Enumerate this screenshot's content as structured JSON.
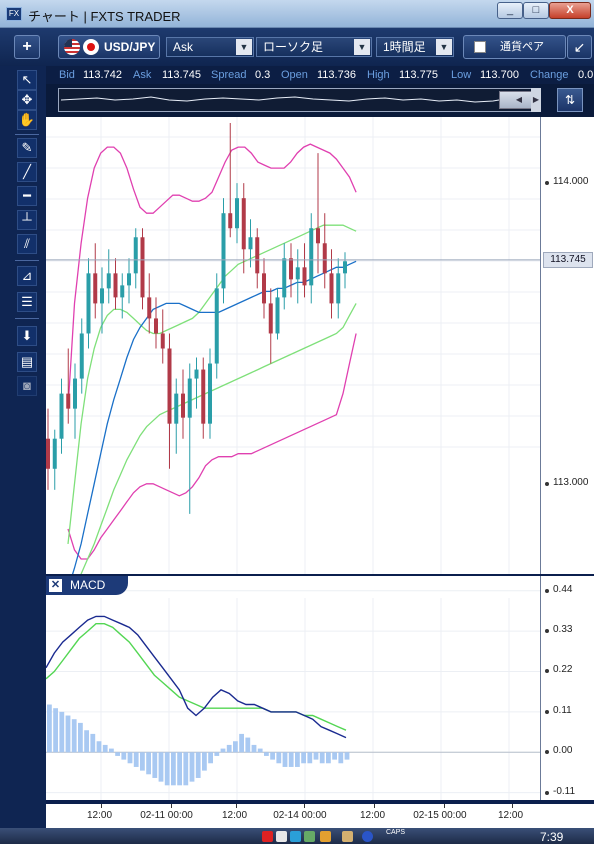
{
  "window": {
    "title": "チャート | FXTS TRADER",
    "app_icon_text": "FX",
    "min": "_",
    "max": "□",
    "close": "X"
  },
  "toolbar": {
    "plus": "+",
    "symbol": "USD/JPY",
    "price_side": "Ask",
    "chart_type": "ローソク足",
    "timeframe": "1時間足",
    "currency_pair_label": "通貨ペア",
    "dropdown_arrow": "▼",
    "maximize_arrow": "↙"
  },
  "quote": {
    "bid_label": "Bid",
    "bid": "113.742",
    "ask_label": "Ask",
    "ask": "113.745",
    "spread_label": "Spread",
    "spread": "0.3",
    "open_label": "Open",
    "open": "113.736",
    "high_label": "High",
    "high": "113.775",
    "low_label": "Low",
    "low": "113.700",
    "change_label": "Change",
    "change": "0.0"
  },
  "navigator": {
    "scroll_left": "◀",
    "scroll_right": "▶",
    "button": "⇅"
  },
  "price_axis": {
    "labels": [
      "114.000",
      "113.000"
    ],
    "current_price": "113.745"
  },
  "macd": {
    "title": "MACD",
    "close": "✕",
    "axis_labels": [
      "0.44",
      "0.33",
      "0.22",
      "0.11",
      "0.00",
      "-0.11"
    ]
  },
  "time_axis": {
    "labels": [
      "12:00",
      "02-11 00:00",
      "12:00",
      "02-14 00:00",
      "12:00",
      "02-15 00:00",
      "12:00"
    ]
  },
  "taskbar": {
    "clock": "7:39",
    "caps": "CAPS"
  },
  "colors": {
    "bull": "#2a9ea8",
    "bear": "#b13a48",
    "bb_outer": "#e040b0",
    "bb_inner": "#7fe07a",
    "ma": "#1a70c8",
    "macd_line": "#1a2a90",
    "signal_line": "#53d653",
    "histogram": "#a9c9f2",
    "frame": "#0f2552"
  },
  "chart_data": [
    {
      "type": "candlestick",
      "symbol": "USD/JPY",
      "timeframe": "1時間足",
      "ylim": [
        112.7,
        114.22
      ],
      "y_ticks": [
        114.0,
        113.0
      ],
      "current_price": 113.745,
      "candles": [
        {
          "o": 113.15,
          "h": 113.25,
          "l": 112.98,
          "c": 113.05
        },
        {
          "o": 113.05,
          "h": 113.18,
          "l": 112.98,
          "c": 113.15
        },
        {
          "o": 113.15,
          "h": 113.35,
          "l": 113.1,
          "c": 113.3
        },
        {
          "o": 113.3,
          "h": 113.45,
          "l": 113.2,
          "c": 113.25
        },
        {
          "o": 113.25,
          "h": 113.4,
          "l": 113.15,
          "c": 113.35
        },
        {
          "o": 113.35,
          "h": 113.55,
          "l": 113.3,
          "c": 113.5
        },
        {
          "o": 113.5,
          "h": 113.75,
          "l": 113.45,
          "c": 113.7
        },
        {
          "o": 113.7,
          "h": 113.8,
          "l": 113.55,
          "c": 113.6
        },
        {
          "o": 113.6,
          "h": 113.72,
          "l": 113.5,
          "c": 113.65
        },
        {
          "o": 113.65,
          "h": 113.78,
          "l": 113.6,
          "c": 113.7
        },
        {
          "o": 113.7,
          "h": 113.75,
          "l": 113.58,
          "c": 113.62
        },
        {
          "o": 113.62,
          "h": 113.7,
          "l": 113.55,
          "c": 113.66
        },
        {
          "o": 113.66,
          "h": 113.75,
          "l": 113.6,
          "c": 113.7
        },
        {
          "o": 113.7,
          "h": 113.85,
          "l": 113.65,
          "c": 113.82
        },
        {
          "o": 113.82,
          "h": 113.85,
          "l": 113.58,
          "c": 113.62
        },
        {
          "o": 113.62,
          "h": 113.7,
          "l": 113.5,
          "c": 113.55
        },
        {
          "o": 113.55,
          "h": 113.62,
          "l": 113.45,
          "c": 113.5
        },
        {
          "o": 113.5,
          "h": 113.58,
          "l": 113.4,
          "c": 113.45
        },
        {
          "o": 113.45,
          "h": 113.5,
          "l": 113.05,
          "c": 113.2
        },
        {
          "o": 113.2,
          "h": 113.35,
          "l": 113.1,
          "c": 113.3
        },
        {
          "o": 113.3,
          "h": 113.38,
          "l": 113.15,
          "c": 113.22
        },
        {
          "o": 113.22,
          "h": 113.4,
          "l": 112.9,
          "c": 113.35
        },
        {
          "o": 113.35,
          "h": 113.42,
          "l": 113.25,
          "c": 113.38
        },
        {
          "o": 113.38,
          "h": 113.42,
          "l": 113.15,
          "c": 113.2
        },
        {
          "o": 113.2,
          "h": 113.45,
          "l": 113.15,
          "c": 113.4
        },
        {
          "o": 113.4,
          "h": 113.7,
          "l": 113.35,
          "c": 113.65
        },
        {
          "o": 113.65,
          "h": 113.95,
          "l": 113.6,
          "c": 113.9
        },
        {
          "o": 113.9,
          "h": 114.2,
          "l": 113.82,
          "c": 113.85
        },
        {
          "o": 113.85,
          "h": 114.0,
          "l": 113.8,
          "c": 113.95
        },
        {
          "o": 113.95,
          "h": 114.0,
          "l": 113.7,
          "c": 113.78
        },
        {
          "o": 113.78,
          "h": 113.88,
          "l": 113.72,
          "c": 113.82
        },
        {
          "o": 113.82,
          "h": 113.85,
          "l": 113.65,
          "c": 113.7
        },
        {
          "o": 113.7,
          "h": 113.75,
          "l": 113.55,
          "c": 113.6
        },
        {
          "o": 113.6,
          "h": 113.65,
          "l": 113.4,
          "c": 113.5
        },
        {
          "o": 113.5,
          "h": 113.65,
          "l": 113.48,
          "c": 113.62
        },
        {
          "o": 113.62,
          "h": 113.8,
          "l": 113.58,
          "c": 113.75
        },
        {
          "o": 113.75,
          "h": 113.8,
          "l": 113.62,
          "c": 113.68
        },
        {
          "o": 113.68,
          "h": 113.78,
          "l": 113.6,
          "c": 113.72
        },
        {
          "o": 113.72,
          "h": 113.8,
          "l": 113.62,
          "c": 113.66
        },
        {
          "o": 113.66,
          "h": 113.9,
          "l": 113.6,
          "c": 113.85
        },
        {
          "o": 113.85,
          "h": 114.1,
          "l": 113.7,
          "c": 113.8
        },
        {
          "o": 113.8,
          "h": 113.9,
          "l": 113.65,
          "c": 113.7
        },
        {
          "o": 113.7,
          "h": 113.78,
          "l": 113.55,
          "c": 113.6
        },
        {
          "o": 113.6,
          "h": 113.75,
          "l": 113.55,
          "c": 113.7
        },
        {
          "o": 113.7,
          "h": 113.77,
          "l": 113.65,
          "c": 113.74
        }
      ],
      "bollinger_upper": [
        113.25,
        113.6,
        113.8,
        113.95,
        114.05,
        114.1,
        114.12,
        114.12,
        114.1,
        114.05,
        113.98,
        113.92,
        113.9,
        113.9,
        113.92,
        113.94,
        113.96,
        113.96,
        113.95,
        113.94,
        113.94,
        113.95,
        113.97,
        114.02,
        114.07,
        114.11,
        114.12,
        114.12,
        114.1,
        114.07,
        114.06,
        114.05,
        114.05,
        114.05,
        114.07,
        114.1,
        114.12,
        114.13,
        114.12,
        114.11,
        114.1,
        114.08,
        114.05,
        114.02,
        113.97
      ],
      "bollinger_lower": [
        112.85,
        112.78,
        112.75,
        112.75,
        112.78,
        112.82,
        112.85,
        112.88,
        112.91,
        112.94,
        112.97,
        112.99,
        113.0,
        113.0,
        112.99,
        112.98,
        112.97,
        112.96,
        112.97,
        112.99,
        113.02,
        113.06,
        113.08,
        113.09,
        113.09,
        113.09,
        113.1,
        113.1,
        113.1,
        113.11,
        113.12,
        113.13,
        113.14,
        113.15,
        113.16,
        113.17,
        113.18,
        113.19,
        113.2,
        113.21,
        113.22,
        113.23,
        113.3,
        113.4,
        113.5
      ],
      "inner_upper": [
        112.8,
        113.0,
        113.2,
        113.35,
        113.45,
        113.52,
        113.56,
        113.58,
        113.58,
        113.57,
        113.55,
        113.53,
        113.51,
        113.5,
        113.5,
        113.51,
        113.52,
        113.53,
        113.54,
        113.55,
        113.57,
        113.6,
        113.63,
        113.66,
        113.69,
        113.71,
        113.73,
        113.74,
        113.75,
        113.76,
        113.77,
        113.78,
        113.79,
        113.8,
        113.81,
        113.82,
        113.83,
        113.84,
        113.85,
        113.86,
        113.86,
        113.86,
        113.86,
        113.85,
        113.84
      ],
      "inner_lower": [
        112.6,
        112.65,
        112.7,
        112.75,
        112.8,
        112.86,
        112.92,
        112.98,
        113.03,
        113.08,
        113.12,
        113.16,
        113.19,
        113.21,
        113.23,
        113.24,
        113.25,
        113.26,
        113.27,
        113.28,
        113.29,
        113.3,
        113.31,
        113.32,
        113.33,
        113.34,
        113.35,
        113.36,
        113.37,
        113.38,
        113.39,
        113.4,
        113.41,
        113.42,
        113.43,
        113.44,
        113.45,
        113.46,
        113.47,
        113.48,
        113.49,
        113.5,
        113.52,
        113.56,
        113.6
      ],
      "moving_average": [
        112.65,
        112.72,
        112.8,
        112.9,
        113.0,
        113.1,
        113.2,
        113.28,
        113.35,
        113.42,
        113.48,
        113.52,
        113.55,
        113.58,
        113.59,
        113.6,
        113.6,
        113.6,
        113.59,
        113.58,
        113.57,
        113.57,
        113.57,
        113.57,
        113.58,
        113.59,
        113.6,
        113.61,
        113.62,
        113.63,
        113.64,
        113.64,
        113.65,
        113.65,
        113.66,
        113.67,
        113.67,
        113.68,
        113.69,
        113.7,
        113.71,
        113.72,
        113.72,
        113.73,
        113.74
      ]
    },
    {
      "type": "macd",
      "ylim": [
        -0.13,
        0.48
      ],
      "y_ticks": [
        0.44,
        0.33,
        0.22,
        0.11,
        0.0,
        -0.11
      ],
      "macd": [
        0.23,
        0.27,
        0.3,
        0.32,
        0.34,
        0.36,
        0.37,
        0.37,
        0.36,
        0.35,
        0.34,
        0.32,
        0.29,
        0.26,
        0.23,
        0.2,
        0.17,
        0.12,
        0.1,
        0.12,
        0.15,
        0.17,
        0.16,
        0.14,
        0.13,
        0.13,
        0.12,
        0.11,
        0.11,
        0.11,
        0.11,
        0.1,
        0.09,
        0.07,
        0.06,
        0.05,
        0.04
      ],
      "signal": [
        0.2,
        0.22,
        0.25,
        0.28,
        0.31,
        0.33,
        0.35,
        0.35,
        0.34,
        0.32,
        0.3,
        0.27,
        0.24,
        0.21,
        0.19,
        0.17,
        0.15,
        0.14,
        0.13,
        0.12,
        0.12,
        0.12,
        0.12,
        0.12,
        0.12,
        0.12,
        0.12,
        0.11,
        0.11,
        0.11,
        0.11,
        0.1,
        0.1,
        0.09,
        0.08,
        0.07,
        0.06
      ],
      "histogram": [
        0.13,
        0.12,
        0.11,
        0.1,
        0.09,
        0.08,
        0.06,
        0.05,
        0.03,
        0.02,
        0.01,
        -0.01,
        -0.02,
        -0.03,
        -0.04,
        -0.05,
        -0.06,
        -0.07,
        -0.08,
        -0.09,
        -0.09,
        -0.09,
        -0.09,
        -0.08,
        -0.07,
        -0.05,
        -0.03,
        -0.01,
        0.01,
        0.02,
        0.03,
        0.05,
        0.04,
        0.02,
        0.01,
        -0.01,
        -0.02,
        -0.03,
        -0.04,
        -0.04,
        -0.04,
        -0.03,
        -0.03,
        -0.02,
        -0.03,
        -0.03,
        -0.02,
        -0.03,
        -0.02
      ]
    }
  ]
}
